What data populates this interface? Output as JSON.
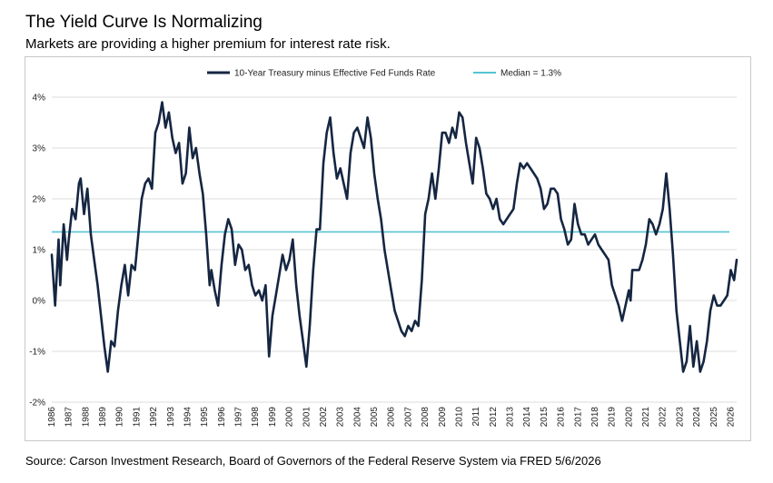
{
  "title": "The Yield Curve Is Normalizing",
  "subtitle": "Markets are providing a higher premium for interest rate risk.",
  "source": "Source: Carson Investment Research, Board of Governors of the Federal Reserve System via FRED 5/6/2026",
  "chart_data": {
    "type": "line",
    "ylim": [
      -2,
      4
    ],
    "xlim": [
      1986,
      2026.35
    ],
    "y_ticks": [
      "4%",
      "3%",
      "2%",
      "1%",
      "0%",
      "-1%",
      "-2%"
    ],
    "x_ticks": [
      "1986",
      "1987",
      "1988",
      "1989",
      "1990",
      "1991",
      "1992",
      "1993",
      "1994",
      "1995",
      "1996",
      "1997",
      "1998",
      "1999",
      "2000",
      "2001",
      "2002",
      "2003",
      "2004",
      "2005",
      "2006",
      "2007",
      "2008",
      "2009",
      "2010",
      "2011",
      "2012",
      "2013",
      "2014",
      "2015",
      "2016",
      "2017",
      "2018",
      "2019",
      "2020",
      "2021",
      "2022",
      "2023",
      "2024",
      "2025",
      "2026"
    ],
    "grid": true,
    "legend_position": "top",
    "series": [
      {
        "name": "10-Year Treasury minus Effective Fed Funds Rate",
        "color": "#152642",
        "points": [
          [
            1986.0,
            0.9
          ],
          [
            1986.2,
            -0.1
          ],
          [
            1986.4,
            1.2
          ],
          [
            1986.5,
            0.3
          ],
          [
            1986.7,
            1.5
          ],
          [
            1986.9,
            0.8
          ],
          [
            1987.0,
            1.2
          ],
          [
            1987.2,
            1.8
          ],
          [
            1987.4,
            1.6
          ],
          [
            1987.6,
            2.3
          ],
          [
            1987.7,
            2.4
          ],
          [
            1987.9,
            1.7
          ],
          [
            1988.1,
            2.2
          ],
          [
            1988.3,
            1.3
          ],
          [
            1988.5,
            0.8
          ],
          [
            1988.7,
            0.3
          ],
          [
            1988.9,
            -0.3
          ],
          [
            1989.1,
            -0.9
          ],
          [
            1989.3,
            -1.4
          ],
          [
            1989.5,
            -0.8
          ],
          [
            1989.7,
            -0.9
          ],
          [
            1989.9,
            -0.2
          ],
          [
            1990.1,
            0.3
          ],
          [
            1990.3,
            0.7
          ],
          [
            1990.5,
            0.1
          ],
          [
            1990.7,
            0.7
          ],
          [
            1990.9,
            0.6
          ],
          [
            1991.1,
            1.3
          ],
          [
            1991.3,
            2.0
          ],
          [
            1991.5,
            2.3
          ],
          [
            1991.7,
            2.4
          ],
          [
            1991.9,
            2.2
          ],
          [
            1992.1,
            3.3
          ],
          [
            1992.3,
            3.5
          ],
          [
            1992.5,
            3.9
          ],
          [
            1992.7,
            3.4
          ],
          [
            1992.9,
            3.7
          ],
          [
            1993.1,
            3.2
          ],
          [
            1993.3,
            2.9
          ],
          [
            1993.5,
            3.1
          ],
          [
            1993.7,
            2.3
          ],
          [
            1993.9,
            2.5
          ],
          [
            1994.1,
            3.4
          ],
          [
            1994.3,
            2.8
          ],
          [
            1994.5,
            3.0
          ],
          [
            1994.7,
            2.5
          ],
          [
            1994.9,
            2.1
          ],
          [
            1995.1,
            1.3
          ],
          [
            1995.3,
            0.3
          ],
          [
            1995.4,
            0.6
          ],
          [
            1995.6,
            0.2
          ],
          [
            1995.8,
            -0.1
          ],
          [
            1996.0,
            0.7
          ],
          [
            1996.2,
            1.3
          ],
          [
            1996.4,
            1.6
          ],
          [
            1996.6,
            1.4
          ],
          [
            1996.8,
            0.7
          ],
          [
            1997.0,
            1.1
          ],
          [
            1997.2,
            1.0
          ],
          [
            1997.4,
            0.6
          ],
          [
            1997.6,
            0.7
          ],
          [
            1997.8,
            0.3
          ],
          [
            1998.0,
            0.1
          ],
          [
            1998.2,
            0.2
          ],
          [
            1998.4,
            0.0
          ],
          [
            1998.6,
            0.3
          ],
          [
            1998.8,
            -1.1
          ],
          [
            1999.0,
            -0.3
          ],
          [
            1999.2,
            0.1
          ],
          [
            1999.4,
            0.5
          ],
          [
            1999.6,
            0.9
          ],
          [
            1999.8,
            0.6
          ],
          [
            2000.0,
            0.8
          ],
          [
            2000.2,
            1.2
          ],
          [
            2000.4,
            0.3
          ],
          [
            2000.6,
            -0.3
          ],
          [
            2000.8,
            -0.8
          ],
          [
            2001.0,
            -1.3
          ],
          [
            2001.2,
            -0.5
          ],
          [
            2001.4,
            0.6
          ],
          [
            2001.6,
            1.4
          ],
          [
            2001.8,
            1.4
          ],
          [
            2002.0,
            2.7
          ],
          [
            2002.2,
            3.3
          ],
          [
            2002.4,
            3.6
          ],
          [
            2002.6,
            2.9
          ],
          [
            2002.8,
            2.4
          ],
          [
            2003.0,
            2.6
          ],
          [
            2003.2,
            2.3
          ],
          [
            2003.4,
            2.0
          ],
          [
            2003.6,
            2.9
          ],
          [
            2003.8,
            3.3
          ],
          [
            2004.0,
            3.4
          ],
          [
            2004.2,
            3.2
          ],
          [
            2004.4,
            3.0
          ],
          [
            2004.6,
            3.6
          ],
          [
            2004.8,
            3.2
          ],
          [
            2005.0,
            2.5
          ],
          [
            2005.2,
            2.0
          ],
          [
            2005.4,
            1.6
          ],
          [
            2005.6,
            1.0
          ],
          [
            2005.8,
            0.6
          ],
          [
            2006.0,
            0.2
          ],
          [
            2006.2,
            -0.2
          ],
          [
            2006.4,
            -0.4
          ],
          [
            2006.6,
            -0.6
          ],
          [
            2006.8,
            -0.7
          ],
          [
            2007.0,
            -0.5
          ],
          [
            2007.2,
            -0.6
          ],
          [
            2007.4,
            -0.4
          ],
          [
            2007.6,
            -0.5
          ],
          [
            2007.8,
            0.4
          ],
          [
            2008.0,
            1.7
          ],
          [
            2008.2,
            2.0
          ],
          [
            2008.4,
            2.5
          ],
          [
            2008.6,
            2.0
          ],
          [
            2008.8,
            2.6
          ],
          [
            2009.0,
            3.3
          ],
          [
            2009.2,
            3.3
          ],
          [
            2009.4,
            3.1
          ],
          [
            2009.6,
            3.4
          ],
          [
            2009.8,
            3.2
          ],
          [
            2010.0,
            3.7
          ],
          [
            2010.2,
            3.6
          ],
          [
            2010.4,
            3.1
          ],
          [
            2010.6,
            2.7
          ],
          [
            2010.8,
            2.3
          ],
          [
            2011.0,
            3.2
          ],
          [
            2011.2,
            3.0
          ],
          [
            2011.4,
            2.6
          ],
          [
            2011.6,
            2.1
          ],
          [
            2011.8,
            2.0
          ],
          [
            2012.0,
            1.8
          ],
          [
            2012.2,
            2.0
          ],
          [
            2012.4,
            1.6
          ],
          [
            2012.6,
            1.5
          ],
          [
            2012.8,
            1.6
          ],
          [
            2013.0,
            1.7
          ],
          [
            2013.2,
            1.8
          ],
          [
            2013.4,
            2.3
          ],
          [
            2013.6,
            2.7
          ],
          [
            2013.8,
            2.6
          ],
          [
            2014.0,
            2.7
          ],
          [
            2014.2,
            2.6
          ],
          [
            2014.4,
            2.5
          ],
          [
            2014.6,
            2.4
          ],
          [
            2014.8,
            2.2
          ],
          [
            2015.0,
            1.8
          ],
          [
            2015.2,
            1.9
          ],
          [
            2015.4,
            2.2
          ],
          [
            2015.6,
            2.2
          ],
          [
            2015.8,
            2.1
          ],
          [
            2016.0,
            1.6
          ],
          [
            2016.2,
            1.4
          ],
          [
            2016.4,
            1.1
          ],
          [
            2016.6,
            1.2
          ],
          [
            2016.8,
            1.9
          ],
          [
            2017.0,
            1.5
          ],
          [
            2017.2,
            1.3
          ],
          [
            2017.4,
            1.3
          ],
          [
            2017.6,
            1.1
          ],
          [
            2017.8,
            1.2
          ],
          [
            2018.0,
            1.3
          ],
          [
            2018.2,
            1.1
          ],
          [
            2018.4,
            1.0
          ],
          [
            2018.6,
            0.9
          ],
          [
            2018.8,
            0.8
          ],
          [
            2019.0,
            0.3
          ],
          [
            2019.2,
            0.1
          ],
          [
            2019.4,
            -0.1
          ],
          [
            2019.6,
            -0.4
          ],
          [
            2019.8,
            -0.1
          ],
          [
            2020.0,
            0.2
          ],
          [
            2020.1,
            0.0
          ],
          [
            2020.2,
            0.6
          ],
          [
            2020.4,
            0.6
          ],
          [
            2020.6,
            0.6
          ],
          [
            2020.8,
            0.8
          ],
          [
            2021.0,
            1.1
          ],
          [
            2021.2,
            1.6
          ],
          [
            2021.4,
            1.5
          ],
          [
            2021.6,
            1.3
          ],
          [
            2021.8,
            1.5
          ],
          [
            2022.0,
            1.8
          ],
          [
            2022.2,
            2.5
          ],
          [
            2022.4,
            1.8
          ],
          [
            2022.6,
            0.9
          ],
          [
            2022.8,
            -0.2
          ],
          [
            2023.0,
            -0.8
          ],
          [
            2023.2,
            -1.4
          ],
          [
            2023.4,
            -1.2
          ],
          [
            2023.6,
            -0.5
          ],
          [
            2023.8,
            -1.3
          ],
          [
            2024.0,
            -0.8
          ],
          [
            2024.2,
            -1.4
          ],
          [
            2024.4,
            -1.2
          ],
          [
            2024.6,
            -0.8
          ],
          [
            2024.8,
            -0.2
          ],
          [
            2025.0,
            0.1
          ],
          [
            2025.2,
            -0.1
          ],
          [
            2025.4,
            -0.1
          ],
          [
            2025.6,
            0.0
          ],
          [
            2025.8,
            0.1
          ],
          [
            2026.0,
            0.6
          ],
          [
            2026.2,
            0.4
          ],
          [
            2026.35,
            0.8
          ]
        ]
      },
      {
        "name": "Median = 1.3%",
        "color": "#55c3d3",
        "value": 1.35
      }
    ]
  }
}
